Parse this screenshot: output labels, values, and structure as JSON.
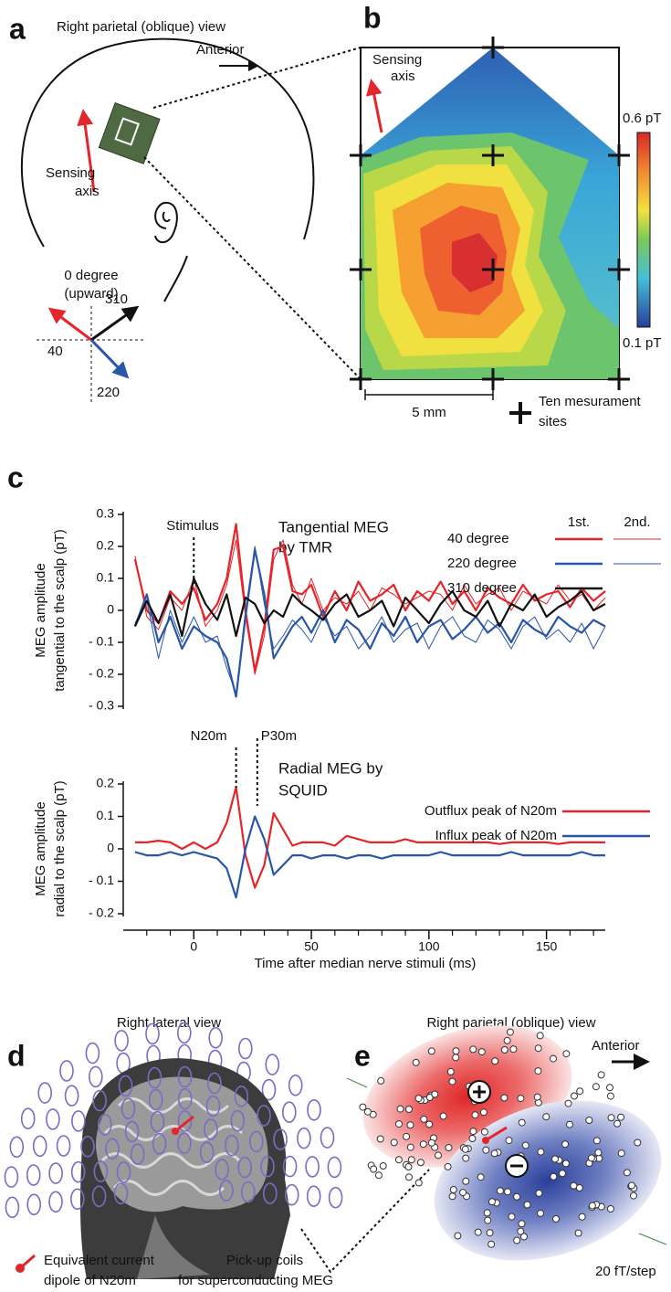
{
  "panel_labels": [
    "a",
    "b",
    "c",
    "d",
    "e"
  ],
  "panel_a": {
    "title": "Right parietal (oblique) view",
    "anterior": "Anterior",
    "sensing_axis": [
      "Sensing",
      "axis"
    ],
    "degree_title": [
      "0 degree",
      "(upward)"
    ],
    "degrees": [
      "310",
      "40",
      "220"
    ]
  },
  "panel_b": {
    "sensing_axis": [
      "Sensing",
      "axis"
    ],
    "colorbar_max": "0.6 pT",
    "colorbar_min": "0.1 pT",
    "scale_bar": "5 mm",
    "legend": [
      "Ten mesurament",
      "sites"
    ]
  },
  "chart_data": [
    {
      "type": "line",
      "title": [
        "Tangential MEG",
        "by TMR"
      ],
      "ylabel": [
        "MEG amplitude",
        "tangential to the scalp (pT)"
      ],
      "x": [
        -25,
        -20,
        -15,
        -10,
        -5,
        0,
        5,
        10,
        14,
        18,
        22,
        26,
        30,
        34,
        38,
        42,
        46,
        50,
        55,
        60,
        65,
        70,
        75,
        80,
        85,
        90,
        95,
        100,
        105,
        110,
        115,
        120,
        125,
        130,
        135,
        140,
        145,
        150,
        155,
        160,
        165,
        170,
        175
      ],
      "xlim": [
        -30,
        175
      ],
      "ylim": [
        -0.3,
        0.3
      ],
      "yticks": [
        0.3,
        0.2,
        0.1,
        0,
        {
          "value": -0.1,
          "label": "- 0.1"
        },
        {
          "value": -0.2,
          "label": "- 0.2"
        },
        {
          "value": -0.3,
          "label": "- 0.3"
        }
      ],
      "legend_columns": [
        "1st.",
        "2nd."
      ],
      "series": [
        {
          "name": "40 degree",
          "color": "#e3262b",
          "trials": [
            [
              0.16,
              0.0,
              -0.04,
              0.06,
              0.02,
              0.07,
              -0.03,
              0.02,
              0.1,
              0.27,
              0.0,
              -0.19,
              -0.05,
              0.19,
              0.2,
              0.06,
              0.05,
              0.08,
              -0.02,
              0.06,
              0.0,
              0.09,
              0.03,
              0.05,
              0.08,
              0.0,
              0.06,
              0.03,
              0.09,
              0.02,
              0.06,
              0.0,
              0.07,
              0.04,
              0.02,
              0.08,
              0.03,
              0.05,
              0.06,
              0.01,
              0.07,
              0.03,
              0.06
            ],
            [
              0.17,
              -0.02,
              -0.06,
              0.04,
              0.0,
              0.1,
              -0.05,
              0.0,
              0.08,
              0.22,
              -0.02,
              -0.2,
              -0.08,
              0.16,
              0.22,
              0.08,
              0.02,
              0.1,
              0.0,
              0.04,
              0.02,
              0.06,
              0.0,
              0.07,
              0.05,
              0.02,
              0.04,
              0.06,
              0.05,
              0.0,
              0.08,
              0.02,
              0.05,
              0.07,
              0.0,
              0.06,
              0.04,
              0.02,
              0.08,
              0.03,
              0.05,
              0.0,
              0.04
            ]
          ]
        },
        {
          "name": "220 degree",
          "color": "#2a56a8",
          "trials": [
            [
              -0.05,
              0.05,
              -0.1,
              -0.02,
              -0.12,
              -0.05,
              -0.08,
              -0.1,
              -0.15,
              -0.27,
              -0.02,
              0.19,
              0.05,
              -0.15,
              -0.1,
              -0.05,
              -0.02,
              -0.07,
              0.0,
              -0.1,
              -0.03,
              -0.06,
              -0.12,
              -0.04,
              -0.08,
              -0.02,
              -0.1,
              -0.05,
              -0.03,
              -0.09,
              -0.06,
              -0.02,
              -0.07,
              -0.04,
              -0.1,
              -0.03,
              -0.06,
              -0.08,
              -0.02,
              -0.05,
              -0.07,
              -0.03,
              -0.05
            ],
            [
              -0.04,
              0.03,
              -0.15,
              0.0,
              -0.1,
              -0.02,
              -0.1,
              -0.08,
              -0.18,
              -0.26,
              0.0,
              0.2,
              0.02,
              -0.12,
              -0.08,
              -0.03,
              -0.06,
              -0.1,
              -0.02,
              -0.08,
              -0.05,
              -0.12,
              -0.08,
              -0.02,
              -0.1,
              -0.06,
              -0.04,
              -0.12,
              -0.05,
              -0.02,
              -0.08,
              -0.1,
              -0.03,
              -0.06,
              -0.12,
              -0.05,
              -0.02,
              -0.09,
              -0.06,
              -0.1,
              -0.04,
              -0.12,
              -0.05
            ]
          ]
        },
        {
          "name": "310 degree",
          "color": "#111111",
          "trials": [
            [
              -0.05,
              0.03,
              -0.04,
              0.05,
              -0.08,
              0.1,
              0.02,
              -0.03,
              0.05,
              -0.08,
              0.04,
              0.02,
              -0.04,
              0.0,
              -0.02,
              0.05,
              0.02,
              0.0,
              -0.03,
              0.02,
              0.05,
              -0.02,
              0.0,
              0.03,
              -0.05,
              0.04,
              0.0,
              -0.04,
              0.02,
              0.06,
              0.0,
              -0.02,
              0.03,
              -0.05,
              0.02,
              0.0,
              0.05,
              -0.02,
              0.01,
              0.03,
              0.06,
              0.0,
              0.02
            ]
          ]
        }
      ],
      "annotations": [
        {
          "text": "Stimulus",
          "x": 0
        }
      ]
    },
    {
      "type": "line",
      "title": [
        "Radial MEG by",
        "SQUID"
      ],
      "ylabel": [
        "MEG amplitude",
        "radial to the scalp (pT)"
      ],
      "xlabel": "Time after median nerve stimuli (ms)",
      "x": [
        -25,
        -20,
        -15,
        -10,
        -5,
        0,
        5,
        10,
        14,
        18,
        22,
        26,
        30,
        34,
        38,
        42,
        46,
        50,
        55,
        60,
        65,
        70,
        75,
        80,
        85,
        90,
        95,
        100,
        105,
        110,
        115,
        120,
        125,
        130,
        135,
        140,
        145,
        150,
        155,
        160,
        165,
        170,
        175
      ],
      "xlim": [
        -30,
        175
      ],
      "ylim": [
        -0.2,
        0.2
      ],
      "yticks": [
        0.2,
        0.1,
        0,
        {
          "value": -0.1,
          "label": "- 0.1"
        },
        {
          "value": -0.2,
          "label": "- 0.2"
        }
      ],
      "xticks": [
        0,
        50,
        100,
        150
      ],
      "xminorticks": [
        -20,
        -10,
        10,
        20,
        30,
        40,
        60,
        70,
        80,
        90,
        110,
        120,
        130,
        140,
        160,
        170
      ],
      "series": [
        {
          "name": "Outflux peak of N20m",
          "color": "#e3262b",
          "values": [
            0.02,
            0.02,
            0.025,
            0.02,
            0.0,
            0.02,
            0.0,
            0.02,
            0.08,
            0.19,
            -0.02,
            -0.12,
            -0.05,
            0.11,
            0.06,
            0.01,
            0.02,
            0.02,
            0.02,
            0.01,
            0.04,
            0.03,
            0.02,
            0.02,
            0.02,
            0.03,
            0.02,
            0.02,
            0.02,
            0.02,
            0.02,
            0.02,
            0.02,
            0.015,
            0.02,
            0.02,
            0.02,
            0.02,
            0.015,
            0.02,
            0.02,
            0.02,
            0.02
          ]
        },
        {
          "name": "Influx peak of N20m",
          "color": "#2a56a8",
          "values": [
            -0.01,
            -0.02,
            -0.02,
            -0.01,
            -0.02,
            -0.01,
            -0.02,
            -0.03,
            -0.06,
            -0.15,
            0.0,
            0.1,
            0.03,
            -0.08,
            -0.05,
            -0.02,
            -0.02,
            -0.03,
            -0.02,
            -0.02,
            -0.03,
            -0.02,
            -0.02,
            -0.03,
            -0.02,
            -0.02,
            -0.02,
            -0.02,
            -0.01,
            -0.02,
            -0.02,
            -0.02,
            -0.02,
            -0.02,
            -0.01,
            -0.02,
            -0.02,
            -0.02,
            -0.02,
            -0.02,
            -0.01,
            -0.02,
            -0.02
          ]
        }
      ],
      "annotations": [
        {
          "text": "N20m",
          "x": 18
        },
        {
          "text": "P30m",
          "x": 27
        }
      ]
    }
  ],
  "panel_d": {
    "title": "Right lateral view",
    "dipole_label": [
      "Equivalent current",
      "dipole of N20m"
    ],
    "coils_label": [
      "Pick-up coils",
      "for superconducting MEG"
    ]
  },
  "panel_e": {
    "title": "Right parietal (oblique) view",
    "anterior": "Anterior",
    "scale": "20 fT/step"
  }
}
